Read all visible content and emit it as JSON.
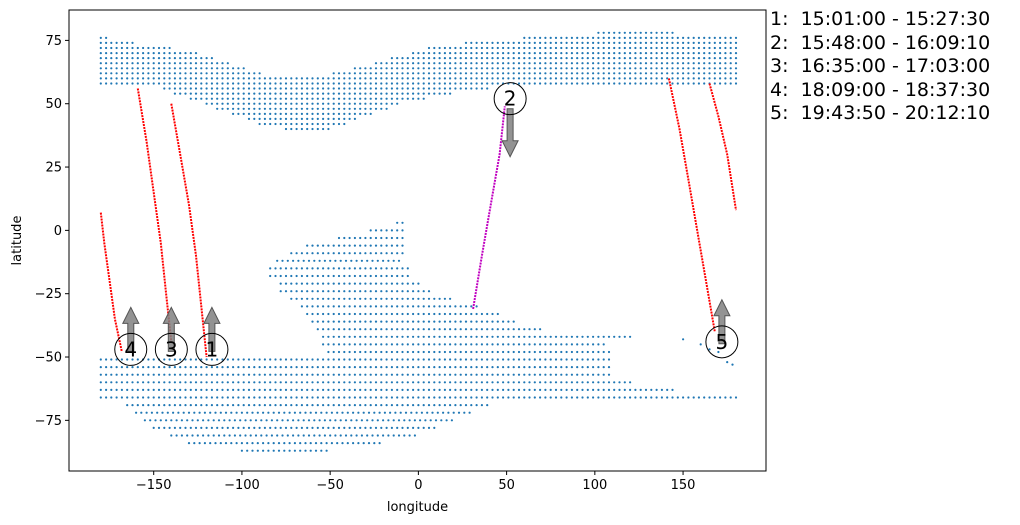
{
  "chart_data": {
    "type": "scatter",
    "title": "",
    "xlabel": "longitude",
    "ylabel": "latitude",
    "xlim": [
      -198,
      197
    ],
    "ylim": [
      -95,
      87
    ],
    "xticks": [
      -150,
      -100,
      -50,
      0,
      50,
      100,
      150
    ],
    "yticks": [
      -75,
      -50,
      -25,
      0,
      25,
      50,
      75
    ],
    "grid": false,
    "colors": {
      "region_points": "#1f77b4",
      "track_red": "#ff0000",
      "track_magenta": "#c000c0",
      "arrow_fill": "#808080",
      "arrow_edge": "#555555"
    },
    "region_points": {
      "description_grid_step_deg": 3,
      "northern_band": {
        "lon_range": [
          -180,
          180
        ],
        "lat_top_profile": [
          [
            -180,
            77
          ],
          [
            -170,
            75
          ],
          [
            -150,
            73
          ],
          [
            -130,
            71
          ],
          [
            -110,
            67
          ],
          [
            -90,
            62
          ],
          [
            -70,
            60
          ],
          [
            -50,
            62
          ],
          [
            -30,
            65
          ],
          [
            -10,
            69
          ],
          [
            10,
            73
          ],
          [
            40,
            75
          ],
          [
            80,
            77
          ],
          [
            120,
            79
          ],
          [
            140,
            79
          ],
          [
            150,
            77
          ],
          [
            180,
            77
          ]
        ],
        "lat_bottom_profile": [
          [
            -180,
            57
          ],
          [
            -150,
            57
          ],
          [
            -130,
            52
          ],
          [
            -110,
            47
          ],
          [
            -90,
            42
          ],
          [
            -70,
            39
          ],
          [
            -50,
            40
          ],
          [
            -30,
            45
          ],
          [
            -10,
            50
          ],
          [
            20,
            54
          ],
          [
            50,
            57
          ],
          [
            100,
            57
          ],
          [
            140,
            57
          ],
          [
            180,
            57
          ]
        ]
      },
      "southern_blob": {
        "lat_rows": [
          {
            "lat": 3,
            "lon": [
              -12,
              -7
            ]
          },
          {
            "lat": 0,
            "lon": [
              -27,
              -7
            ]
          },
          {
            "lat": -3,
            "lon": [
              -45,
              -9
            ]
          },
          {
            "lat": -6,
            "lon": [
              -63,
              -9
            ]
          },
          {
            "lat": -9,
            "lon": [
              -72,
              -9
            ]
          },
          {
            "lat": -12,
            "lon": [
              -80,
              -9
            ]
          },
          {
            "lat": -15,
            "lon": [
              -84,
              -6
            ]
          },
          {
            "lat": -18,
            "lon": [
              -84,
              -6
            ]
          },
          {
            "lat": -21,
            "lon": [
              -78,
              0
            ]
          },
          {
            "lat": -24,
            "lon": [
              -78,
              8
            ]
          },
          {
            "lat": -27,
            "lon": [
              -72,
              20
            ]
          },
          {
            "lat": -30,
            "lon": [
              -66,
              35
            ]
          },
          {
            "lat": -33,
            "lon": [
              -63,
              45
            ]
          },
          {
            "lat": -36,
            "lon": [
              -60,
              55
            ]
          },
          {
            "lat": -39,
            "lon": [
              -57,
              70
            ]
          },
          {
            "lat": -42,
            "lon": [
              -54,
              120
            ]
          },
          {
            "lat": -45,
            "lon": [
              -54,
              105
            ]
          },
          {
            "lat": -48,
            "lon": [
              -51,
              110
            ]
          },
          {
            "lat": -51,
            "lon": [
              -180,
              110
            ]
          },
          {
            "lat": -54,
            "lon": [
              -180,
              110
            ]
          },
          {
            "lat": -57,
            "lon": [
              -180,
              110
            ]
          },
          {
            "lat": -60,
            "lon": [
              -180,
              120
            ]
          },
          {
            "lat": -63,
            "lon": [
              -180,
              145
            ]
          },
          {
            "lat": -66,
            "lon": [
              -180,
              180
            ]
          },
          {
            "lat": -69,
            "lon": [
              -165,
              40
            ]
          },
          {
            "lat": -72,
            "lon": [
              -160,
              30
            ]
          },
          {
            "lat": -75,
            "lon": [
              -155,
              20
            ]
          },
          {
            "lat": -78,
            "lon": [
              -150,
              10
            ]
          },
          {
            "lat": -81,
            "lon": [
              -140,
              0
            ]
          },
          {
            "lat": -84,
            "lon": [
              -130,
              -20
            ]
          },
          {
            "lat": -87,
            "lon": [
              -100,
              -50
            ]
          }
        ],
        "isolated_points": [
          [
            150,
            -43
          ],
          [
            160,
            -45
          ],
          [
            165,
            -47
          ],
          [
            170,
            -48
          ],
          [
            175,
            -52
          ],
          [
            178,
            -53
          ]
        ]
      }
    },
    "series": [
      {
        "id": "1",
        "color": "red",
        "points": [
          [
            -140,
            50
          ],
          [
            -135,
            30
          ],
          [
            -130,
            10
          ],
          [
            -126,
            -10
          ],
          [
            -123,
            -30
          ],
          [
            -120,
            -50
          ]
        ]
      },
      {
        "id": "2",
        "color": "magenta",
        "points": [
          [
            31,
            -31
          ],
          [
            36,
            -10
          ],
          [
            41,
            10
          ],
          [
            46,
            30
          ],
          [
            49,
            49
          ]
        ]
      },
      {
        "id": "3",
        "color": "red",
        "points": [
          [
            -159,
            56
          ],
          [
            -154,
            35
          ],
          [
            -150,
            15
          ],
          [
            -146,
            -5
          ],
          [
            -143,
            -25
          ],
          [
            -140,
            -44
          ]
        ]
      },
      {
        "id": "4",
        "color": "red",
        "points": [
          [
            -180,
            7
          ],
          [
            -178,
            -5
          ],
          [
            -175,
            -20
          ],
          [
            -172,
            -35
          ],
          [
            -168,
            -48
          ]
        ]
      },
      {
        "id": "5a",
        "color": "red",
        "points": [
          [
            142,
            60
          ],
          [
            148,
            40
          ],
          [
            153,
            20
          ],
          [
            158,
            0
          ],
          [
            163,
            -20
          ],
          [
            168,
            -40
          ]
        ]
      },
      {
        "id": "5b",
        "color": "red",
        "points": [
          [
            165,
            58
          ],
          [
            170,
            45
          ],
          [
            175,
            30
          ],
          [
            180,
            8
          ]
        ]
      }
    ],
    "markers": [
      {
        "label": "1",
        "lon": -117,
        "lat": -47,
        "arrow": "up"
      },
      {
        "label": "2",
        "lon": 52,
        "lat": 52,
        "arrow": "down"
      },
      {
        "label": "3",
        "lon": -140,
        "lat": -47,
        "arrow": "up"
      },
      {
        "label": "4",
        "lon": -163,
        "lat": -47,
        "arrow": "up"
      },
      {
        "label": "5",
        "lon": 172,
        "lat": -44,
        "arrow": "up"
      }
    ]
  },
  "legend": [
    "1:  15:01:00 - 15:27:30",
    "2:  15:48:00 - 16:09:10",
    "3:  16:35:00 - 17:03:00",
    "4:  18:09:00 - 18:37:30",
    "5:  19:43:50 - 20:12:10"
  ]
}
